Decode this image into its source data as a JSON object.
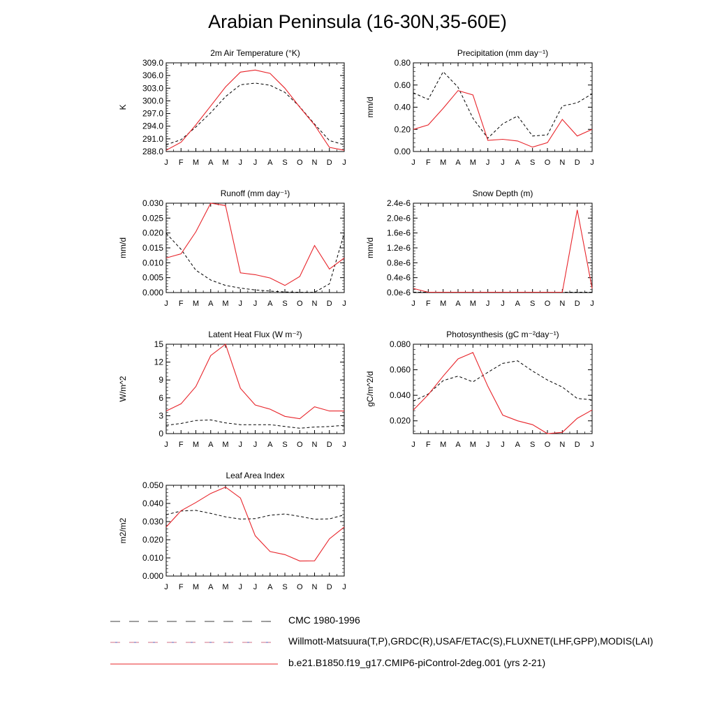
{
  "title": "Arabian Peninsula (16-30N,35-60E)",
  "months": [
    "J",
    "F",
    "M",
    "A",
    "M",
    "J",
    "J",
    "A",
    "S",
    "O",
    "N",
    "D",
    "J"
  ],
  "legend": [
    {
      "label": "CMC 1980-1996",
      "style": "dash",
      "color": "#000000"
    },
    {
      "label": "Willmott-Matsuura(T,P),GRDC(R),USAF/ETAC(S),FLUXNET(LHF,GPP),MODIS(LAI)",
      "style": "dash",
      "color": "#d04040",
      "color2": "#3050c0"
    },
    {
      "label": "b.e21.B1850.f19_g17.CMIP6-piControl-2deg.001 (yrs 2-21)",
      "style": "solid",
      "color": "#e8242a"
    }
  ],
  "chart_data": [
    {
      "type": "line",
      "title": "2m Air Temperature (°K)",
      "ylabel": "K",
      "ylim": [
        288.0,
        309.0
      ],
      "yticks": [
        288.0,
        291.0,
        294.0,
        297.0,
        300.0,
        303.0,
        306.0,
        309.0
      ],
      "ytick_labels": [
        "288.0",
        "291.0",
        "294.0",
        "297.0",
        "300.0",
        "303.0",
        "306.0",
        "309.0"
      ],
      "series": [
        {
          "name": "CMC 1980-1996",
          "style": "dash",
          "values": [
            289.6,
            290.8,
            293.8,
            297.2,
            301.0,
            303.8,
            304.2,
            303.7,
            302.0,
            298.6,
            294.5,
            290.6,
            289.6
          ]
        },
        {
          "name": "b.e21.B1850.f19_g17.CMIP6-piControl-2deg.001 (yrs 2-21)",
          "style": "solid",
          "values": [
            288.3,
            290.2,
            294.3,
            298.8,
            303.3,
            306.8,
            307.3,
            306.5,
            303.0,
            298.5,
            294.3,
            289.0,
            288.3
          ]
        }
      ]
    },
    {
      "type": "line",
      "title": "Precipitation (mm day⁻¹)",
      "ylabel": "mm/d",
      "ylim": [
        0.0,
        0.8
      ],
      "yticks": [
        0.0,
        0.2,
        0.4,
        0.6,
        0.8
      ],
      "ytick_labels": [
        "0.00",
        "0.20",
        "0.40",
        "0.60",
        "0.80"
      ],
      "series": [
        {
          "name": "CMC 1980-1996",
          "style": "dash",
          "values": [
            0.53,
            0.47,
            0.72,
            0.58,
            0.3,
            0.12,
            0.25,
            0.32,
            0.14,
            0.15,
            0.41,
            0.44,
            0.52
          ]
        },
        {
          "name": "b.e21.B1850.f19_g17.CMIP6-piControl-2deg.001 (yrs 2-21)",
          "style": "solid",
          "values": [
            0.2,
            0.24,
            0.39,
            0.55,
            0.51,
            0.1,
            0.11,
            0.095,
            0.04,
            0.08,
            0.29,
            0.14,
            0.2
          ]
        }
      ]
    },
    {
      "type": "line",
      "title": "Runoff (mm day⁻¹)",
      "ylabel": "mm/d",
      "ylim": [
        0.0,
        0.03
      ],
      "yticks": [
        0.0,
        0.005,
        0.01,
        0.015,
        0.02,
        0.025,
        0.03
      ],
      "ytick_labels": [
        "0.000",
        "0.005",
        "0.010",
        "0.015",
        "0.020",
        "0.025",
        "0.030"
      ],
      "series": [
        {
          "name": "CMC 1980-1996",
          "style": "dash",
          "values": [
            0.0199,
            0.0145,
            0.0075,
            0.0042,
            0.0024,
            0.0015,
            0.0009,
            0.0005,
            0.0002,
            0.0001,
            0.0001,
            0.0029,
            0.0199
          ]
        },
        {
          "name": "b.e21.B1850.f19_g17.CMIP6-piControl-2deg.001 (yrs 2-21)",
          "style": "solid",
          "values": [
            0.0116,
            0.013,
            0.0204,
            0.03,
            0.0292,
            0.0066,
            0.006,
            0.0049,
            0.0024,
            0.0054,
            0.0158,
            0.0079,
            0.0116
          ]
        }
      ]
    },
    {
      "type": "line",
      "title": "Snow Depth (m)",
      "ylabel": "mm/d",
      "ylim": [
        0.0,
        2.4e-06
      ],
      "yticks": [
        0.0,
        4e-07,
        8e-07,
        1.2e-06,
        1.6e-06,
        2e-06,
        2.4e-06
      ],
      "ytick_labels": [
        "0.0e-6",
        "0.4e-6",
        "0.8e-6",
        "1.2e-6",
        "1.6e-6",
        "2.0e-6",
        "2.4e-6"
      ],
      "series": [
        {
          "name": "CMC 1980-1996",
          "style": "dash",
          "values": [
            1e-08,
            1e-08,
            1e-08,
            1e-08,
            1e-08,
            1e-08,
            1e-08,
            1e-08,
            1e-08,
            1e-08,
            1e-08,
            1e-08,
            1e-08
          ]
        },
        {
          "name": "b.e21.B1850.f19_g17.CMIP6-piControl-2deg.001 (yrs 2-21)",
          "style": "solid",
          "values": [
            1.1e-07,
            1e-08,
            1e-08,
            1e-08,
            1e-08,
            1e-08,
            1e-08,
            1e-08,
            1e-08,
            1e-08,
            1e-08,
            2.22e-06,
            1.1e-07
          ]
        }
      ]
    },
    {
      "type": "line",
      "title": "Latent Heat Flux (W m⁻²)",
      "ylabel": "W/m^2",
      "ylim": [
        0,
        15
      ],
      "yticks": [
        0,
        3,
        6,
        9,
        12,
        15
      ],
      "ytick_labels": [
        "0",
        "3",
        "6",
        "9",
        "12",
        "15"
      ],
      "series": [
        {
          "name": "CMC 1980-1996",
          "style": "dash",
          "values": [
            1.4,
            1.7,
            2.2,
            2.3,
            1.8,
            1.5,
            1.5,
            1.5,
            1.2,
            0.9,
            1.1,
            1.2,
            1.4
          ]
        },
        {
          "name": "b.e21.B1850.f19_g17.CMIP6-piControl-2deg.001 (yrs 2-21)",
          "style": "solid",
          "values": [
            3.8,
            5.0,
            7.9,
            13.1,
            15.0,
            7.6,
            4.8,
            4.1,
            2.9,
            2.5,
            4.5,
            3.8,
            3.8
          ]
        }
      ]
    },
    {
      "type": "line",
      "title": "Photosynthesis (gC m⁻²day⁻¹)",
      "ylabel": "gC/m^2/d",
      "ylim": [
        0.01,
        0.08
      ],
      "yticks": [
        0.02,
        0.04,
        0.06,
        0.08
      ],
      "ytick_labels": [
        "0.020",
        "0.040",
        "0.060",
        "0.080"
      ],
      "series": [
        {
          "name": "CMC 1980-1996",
          "style": "dash",
          "values": [
            0.0355,
            0.041,
            0.0515,
            0.055,
            0.0505,
            0.058,
            0.065,
            0.067,
            0.059,
            0.052,
            0.0465,
            0.0375,
            0.0365
          ]
        },
        {
          "name": "b.e21.B1850.f19_g17.CMIP6-piControl-2deg.001 (yrs 2-21)",
          "style": "solid",
          "values": [
            0.0285,
            0.0405,
            0.055,
            0.0685,
            0.0735,
            0.047,
            0.0245,
            0.02,
            0.017,
            0.01,
            0.011,
            0.022,
            0.0285
          ]
        }
      ]
    },
    {
      "type": "line",
      "title": "Leaf Area Index",
      "ylabel": "m2/m2",
      "ylim": [
        0.0,
        0.05
      ],
      "yticks": [
        0.0,
        0.01,
        0.02,
        0.03,
        0.04,
        0.05
      ],
      "ytick_labels": [
        "0.000",
        "0.010",
        "0.020",
        "0.030",
        "0.040",
        "0.050"
      ],
      "series": [
        {
          "name": "CMC 1980-1996",
          "style": "dash",
          "values": [
            0.0338,
            0.0358,
            0.0362,
            0.0345,
            0.0326,
            0.0314,
            0.0316,
            0.0335,
            0.0342,
            0.0329,
            0.0313,
            0.0315,
            0.0337
          ]
        },
        {
          "name": "b.e21.B1850.f19_g17.CMIP6-piControl-2deg.001 (yrs 2-21)",
          "style": "solid",
          "values": [
            0.027,
            0.036,
            0.0405,
            0.0455,
            0.049,
            0.043,
            0.0222,
            0.0135,
            0.0118,
            0.0083,
            0.0084,
            0.0205,
            0.027
          ]
        }
      ]
    }
  ]
}
